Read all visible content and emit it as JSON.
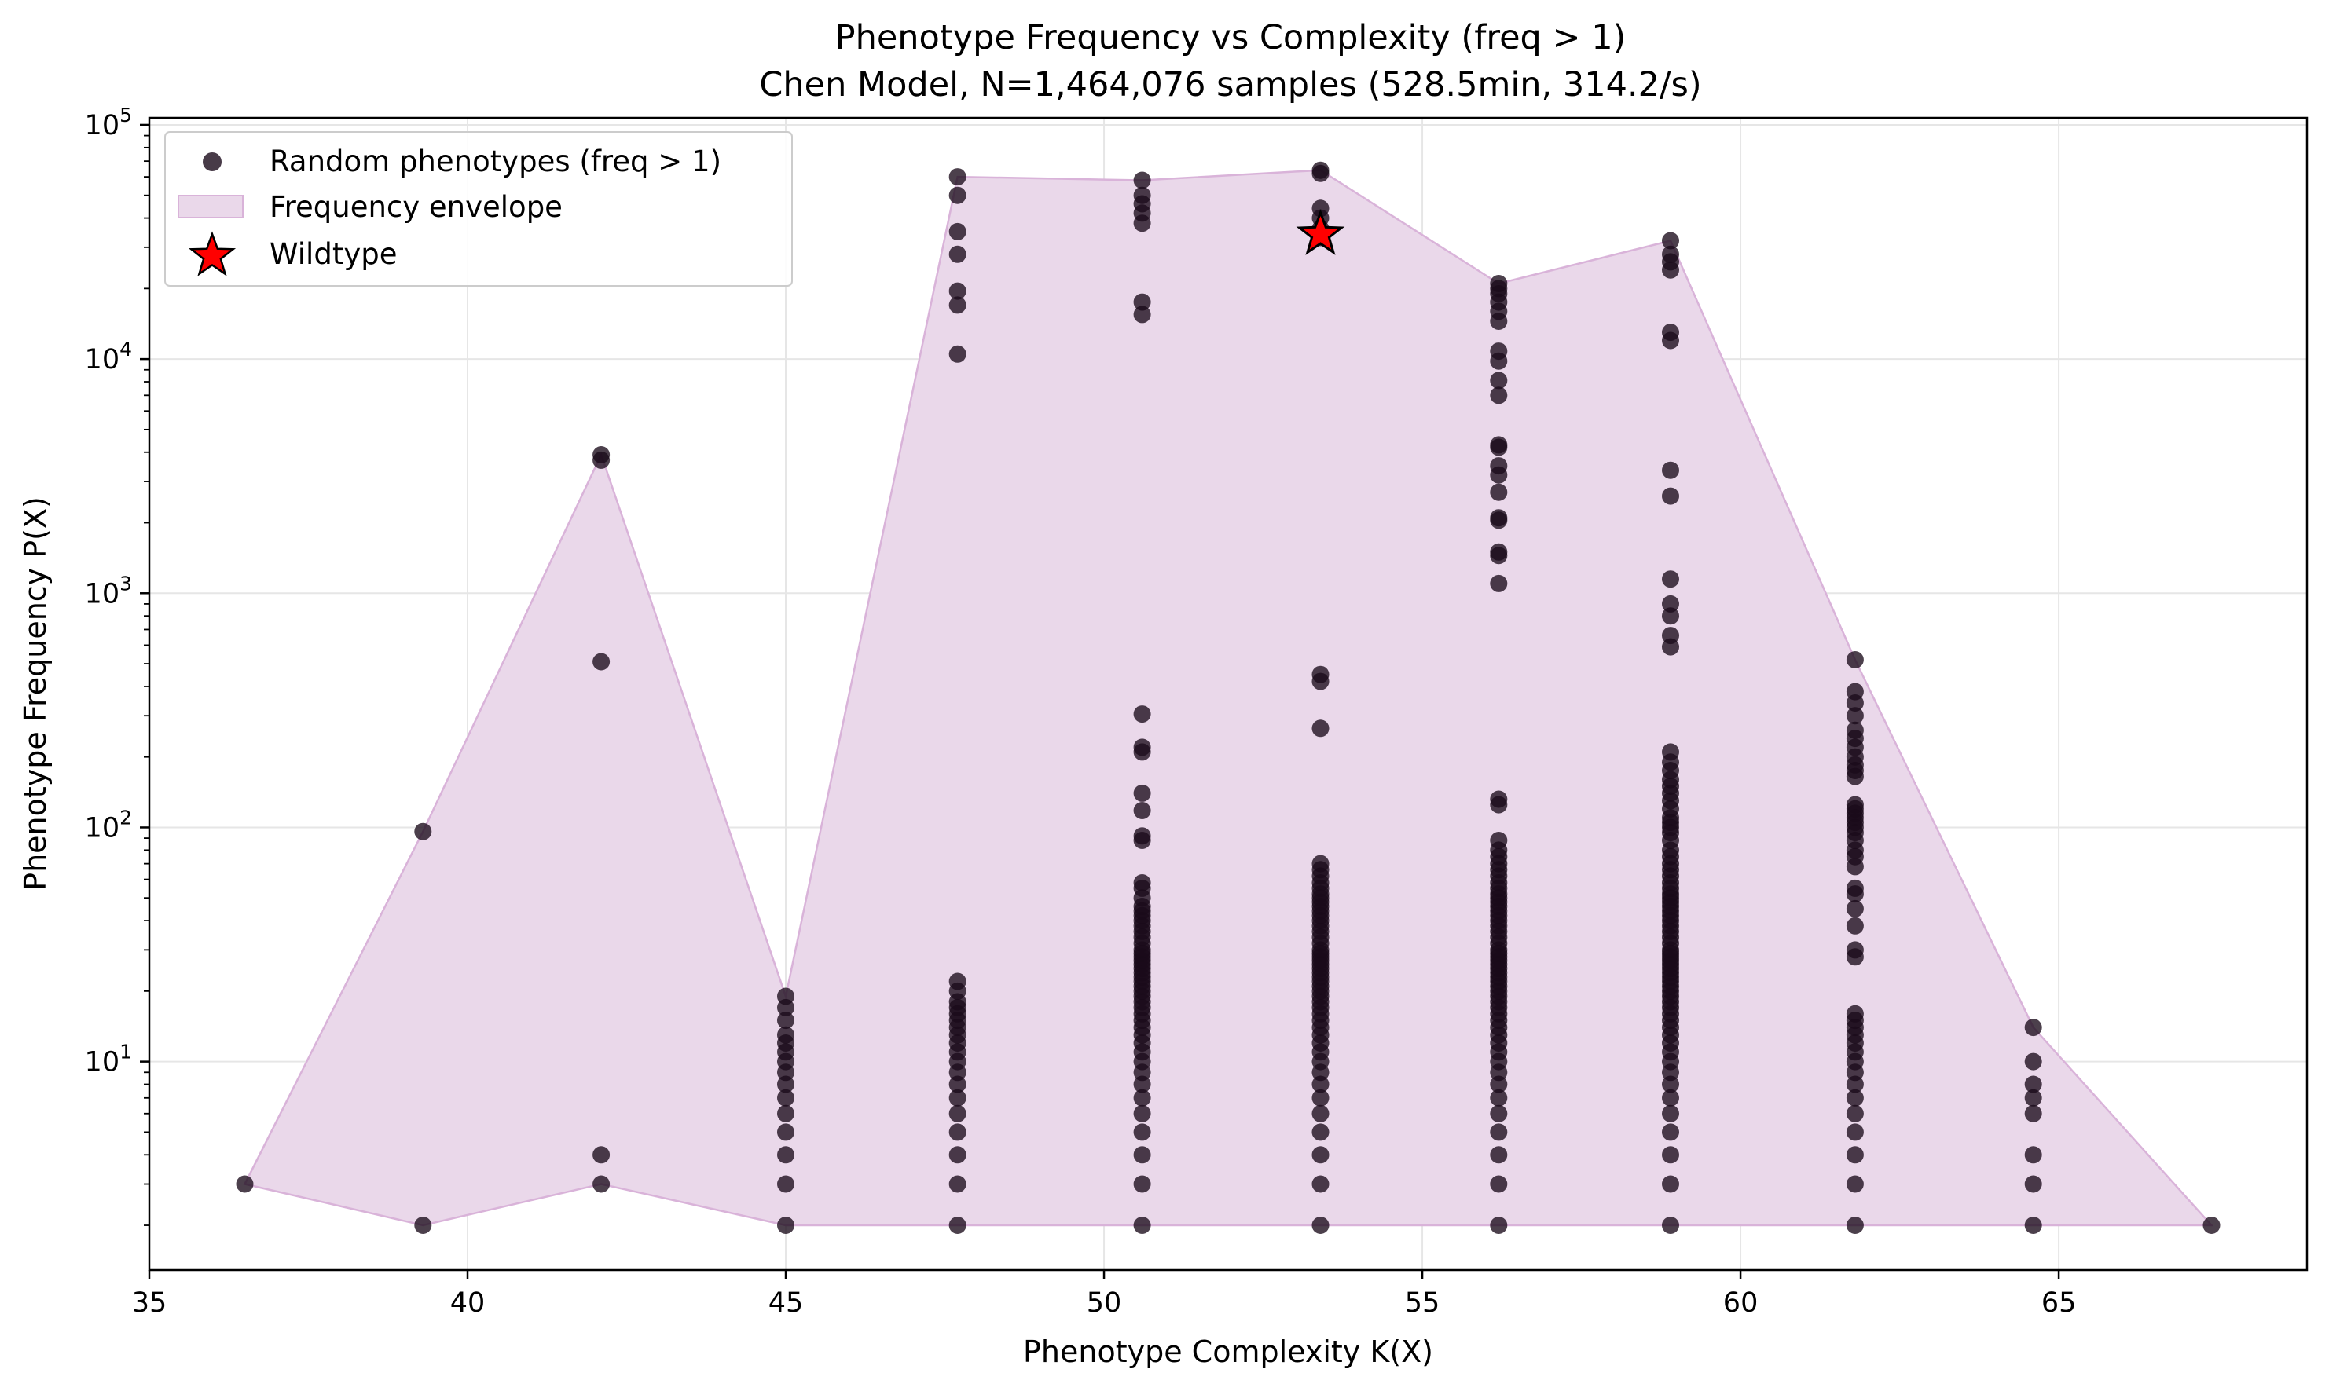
{
  "chart_data": {
    "type": "scatter",
    "title": "Phenotype Frequency vs Complexity (freq > 1)",
    "subtitle": "Chen Model, N=1,464,076 samples (528.5min, 314.2/s)",
    "xlabel": "Phenotype Complexity K(X)",
    "ylabel": "Phenotype Frequency P(X)",
    "xlim": [
      35,
      68.9
    ],
    "ylim_log10": [
      0.11,
      5.03
    ],
    "y_scale": "log",
    "grid": true,
    "legend_position": "top-left",
    "x_ticks": [
      35,
      40,
      45,
      50,
      55,
      60,
      65
    ],
    "x_tick_labels": [
      "35",
      "40",
      "45",
      "50",
      "55",
      "60",
      "65"
    ],
    "y_ticks": [
      10,
      100,
      1000,
      10000,
      100000
    ],
    "y_tick_labels": [
      {
        "base": "10",
        "exp": "1"
      },
      {
        "base": "10",
        "exp": "2"
      },
      {
        "base": "10",
        "exp": "3"
      },
      {
        "base": "10",
        "exp": "4"
      },
      {
        "base": "10",
        "exp": "5"
      }
    ],
    "colors": {
      "points": "#1a0a1a",
      "envelope_fill": "#ead8ea",
      "envelope_edge": "#d9b3d9",
      "wildtype": "#ff0000",
      "grid": "#e6e6e6"
    },
    "legend": [
      {
        "label": "Random phenotypes (freq > 1)",
        "marker": "circle"
      },
      {
        "label": "Frequency envelope",
        "marker": "patch"
      },
      {
        "label": "Wildtype",
        "marker": "star"
      }
    ],
    "envelope": {
      "upper": [
        [
          36.5,
          3
        ],
        [
          39.3,
          96
        ],
        [
          42.1,
          3900
        ],
        [
          45.0,
          19
        ],
        [
          47.7,
          60000
        ],
        [
          50.6,
          58000
        ],
        [
          53.4,
          64000
        ],
        [
          56.2,
          21000
        ],
        [
          58.9,
          32000
        ],
        [
          61.8,
          520
        ],
        [
          64.6,
          14
        ],
        [
          67.4,
          2
        ]
      ],
      "lower": [
        [
          36.5,
          3
        ],
        [
          39.3,
          2
        ],
        [
          42.1,
          3
        ],
        [
          45.0,
          2
        ],
        [
          47.7,
          2
        ],
        [
          50.6,
          2
        ],
        [
          53.4,
          2
        ],
        [
          56.2,
          2
        ],
        [
          58.9,
          2
        ],
        [
          61.8,
          2
        ],
        [
          64.6,
          2
        ],
        [
          67.4,
          2
        ]
      ]
    },
    "series": [
      {
        "name": "Random phenotypes (freq > 1)",
        "columns": [
          {
            "x": 36.5,
            "y": [
              3
            ]
          },
          {
            "x": 39.3,
            "y": [
              2,
              96
            ]
          },
          {
            "x": 42.1,
            "y": [
              3,
              4,
              510,
              3700,
              3900
            ]
          },
          {
            "x": 45.0,
            "y": [
              2,
              3,
              4,
              5,
              6,
              7,
              8,
              9,
              10,
              11,
              12,
              13,
              15,
              17,
              19
            ]
          },
          {
            "x": 47.7,
            "y": [
              2,
              3,
              4,
              5,
              6,
              7,
              8,
              9,
              10,
              11,
              12,
              13,
              14,
              15,
              16,
              17,
              18,
              20,
              22,
              10500,
              17000,
              19500,
              28000,
              35000,
              50000,
              60000
            ]
          },
          {
            "x": 50.6,
            "y": [
              2,
              3,
              4,
              5,
              6,
              7,
              8,
              9,
              10,
              11,
              12,
              13,
              14,
              15,
              16,
              17,
              18,
              19,
              20,
              21,
              22,
              23,
              24,
              25,
              26,
              27,
              28,
              29,
              30,
              32,
              34,
              36,
              38,
              40,
              42,
              44,
              46,
              50,
              55,
              58,
              88,
              92,
              118,
              140,
              210,
              220,
              305,
              15500,
              17500,
              38000,
              42000,
              46000,
              50000,
              58000
            ]
          },
          {
            "x": 53.4,
            "y": [
              2,
              3,
              4,
              5,
              6,
              7,
              8,
              9,
              10,
              11,
              12,
              13,
              14,
              15,
              16,
              17,
              18,
              19,
              20,
              21,
              22,
              23,
              24,
              25,
              26,
              27,
              28,
              29,
              30,
              32,
              34,
              36,
              38,
              40,
              42,
              44,
              46,
              48,
              50,
              52,
              55,
              58,
              62,
              66,
              70,
              265,
              420,
              450,
              33000,
              36000,
              40000,
              44000,
              62000,
              64000
            ]
          },
          {
            "x": 56.2,
            "y": [
              2,
              3,
              4,
              5,
              6,
              7,
              8,
              9,
              10,
              11,
              12,
              13,
              14,
              15,
              16,
              17,
              18,
              19,
              20,
              21,
              22,
              23,
              24,
              25,
              26,
              27,
              28,
              29,
              30,
              32,
              34,
              36,
              38,
              40,
              42,
              44,
              46,
              48,
              50,
              52,
              55,
              58,
              62,
              66,
              70,
              75,
              80,
              88,
              125,
              132,
              1100,
              1450,
              1500,
              2050,
              2100,
              2700,
              3200,
              3500,
              4200,
              4300,
              7000,
              8100,
              9800,
              10800,
              14500,
              16000,
              17500,
              19000,
              20000,
              21000
            ]
          },
          {
            "x": 58.9,
            "y": [
              2,
              3,
              4,
              5,
              6,
              7,
              8,
              9,
              10,
              11,
              12,
              13,
              14,
              15,
              16,
              17,
              18,
              19,
              20,
              21,
              22,
              23,
              24,
              25,
              26,
              27,
              28,
              29,
              30,
              32,
              34,
              36,
              38,
              40,
              42,
              44,
              46,
              48,
              50,
              52,
              55,
              58,
              62,
              66,
              70,
              75,
              80,
              88,
              95,
              100,
              105,
              110,
              120,
              130,
              140,
              150,
              160,
              175,
              190,
              210,
              590,
              660,
              800,
              900,
              1150,
              2600,
              3350,
              12000,
              13000,
              24000,
              26000,
              28000,
              32000
            ]
          },
          {
            "x": 61.8,
            "y": [
              2,
              3,
              4,
              5,
              6,
              7,
              8,
              9,
              10,
              11,
              12,
              13,
              14,
              15,
              16,
              28,
              30,
              38,
              45,
              52,
              55,
              68,
              75,
              80,
              88,
              95,
              100,
              105,
              110,
              115,
              120,
              125,
              165,
              175,
              185,
              200,
              220,
              240,
              260,
              300,
              340,
              380,
              520
            ]
          },
          {
            "x": 64.6,
            "y": [
              2,
              3,
              4,
              6,
              7,
              8,
              10,
              14
            ]
          },
          {
            "x": 67.4,
            "y": [
              2
            ]
          }
        ]
      },
      {
        "name": "Wildtype",
        "points": [
          [
            53.4,
            34000
          ]
        ]
      }
    ]
  }
}
